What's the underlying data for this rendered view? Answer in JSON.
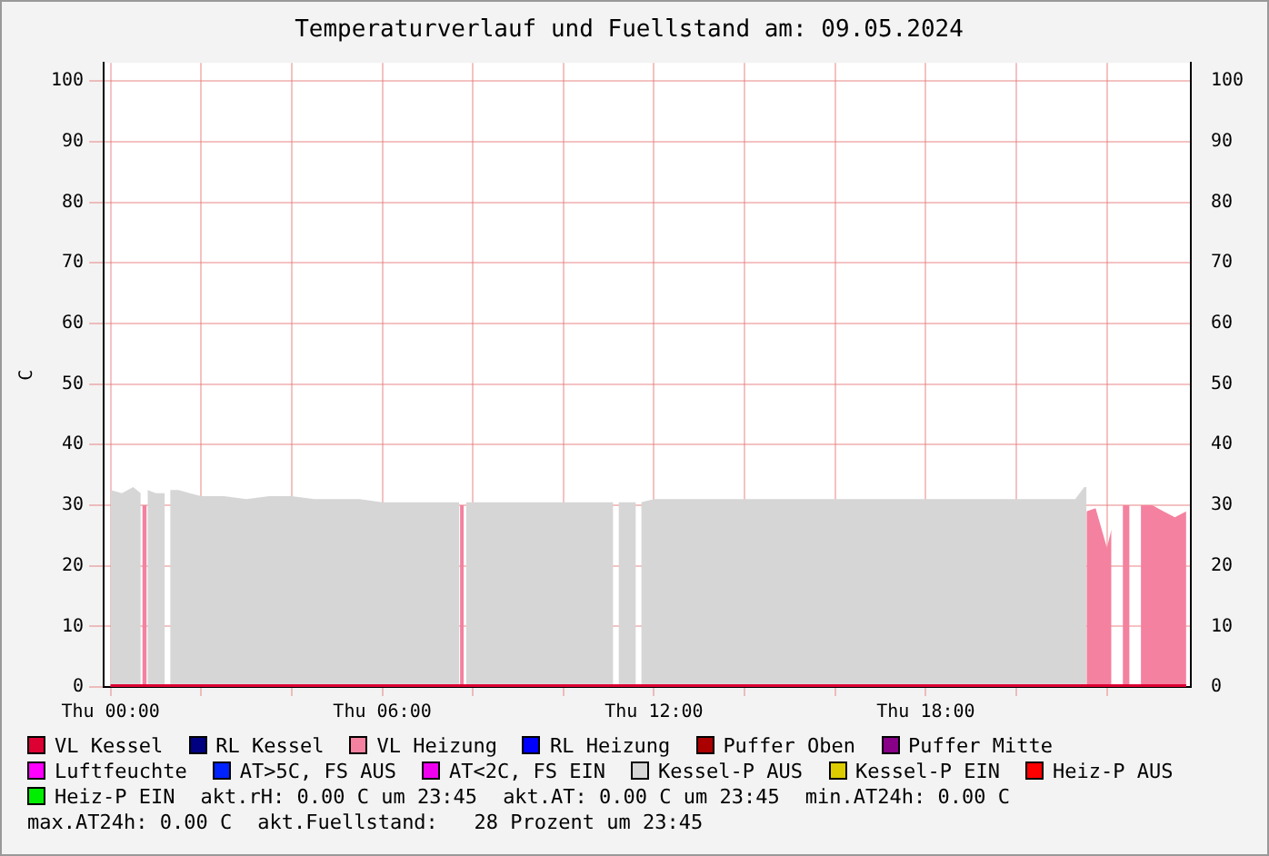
{
  "chart_data": {
    "type": "area",
    "title": "Temperaturverlauf und Fuellstand am: 09.05.2024",
    "ylabel": "C",
    "xlim": [
      "2024-05-08T23:51",
      "2024-05-09T23:51"
    ],
    "xticks": [
      {
        "value": "2024-05-09T00:00",
        "label": "Thu 00:00"
      },
      {
        "value": "2024-05-09T02:00",
        "label": null
      },
      {
        "value": "2024-05-09T04:00",
        "label": null
      },
      {
        "value": "2024-05-09T06:00",
        "label": "Thu 06:00"
      },
      {
        "value": "2024-05-09T08:00",
        "label": null
      },
      {
        "value": "2024-05-09T10:00",
        "label": null
      },
      {
        "value": "2024-05-09T12:00",
        "label": "Thu 12:00"
      },
      {
        "value": "2024-05-09T14:00",
        "label": null
      },
      {
        "value": "2024-05-09T16:00",
        "label": null
      },
      {
        "value": "2024-05-09T18:00",
        "label": "Thu 18:00"
      },
      {
        "value": "2024-05-09T20:00",
        "label": null
      },
      {
        "value": "2024-05-09T22:00",
        "label": null
      }
    ],
    "ylim": [
      0,
      103
    ],
    "yticks": [
      0,
      10,
      20,
      30,
      40,
      50,
      60,
      70,
      80,
      90,
      100
    ],
    "y2lim": [
      0,
      103
    ],
    "y2ticks": [
      0,
      10,
      20,
      30,
      40,
      50,
      60,
      70,
      80,
      90,
      100
    ],
    "grid": true,
    "legend": "bottom",
    "series": [
      {
        "name": "VL Kessel",
        "color": "#dd0033",
        "type": "line",
        "x": [
          "2024-05-09T00:00",
          "2024-05-09T23:45"
        ],
        "values": [
          0,
          0
        ]
      },
      {
        "name": "RL Kessel",
        "color": "#000080"
      },
      {
        "name": "VL Heizung",
        "color": "#f4819f",
        "x": [
          "2024-05-09T00:42",
          "2024-05-09T00:48",
          "2024-05-09T00:51",
          "2024-05-09T07:43",
          "2024-05-09T07:48",
          "2024-05-09T07:51",
          "2024-05-09T21:33",
          "2024-05-09T21:45",
          "2024-05-09T22:00",
          "2024-05-09T22:06",
          "2024-05-09T22:09",
          "2024-05-09T22:21",
          "2024-05-09T22:30",
          "2024-05-09T22:36",
          "2024-05-09T22:45",
          "2024-05-09T23:00",
          "2024-05-09T23:15",
          "2024-05-09T23:30",
          "2024-05-09T23:45"
        ],
        "values": [
          30,
          30,
          null,
          30,
          30,
          null,
          29,
          29.5,
          23,
          26,
          null,
          30,
          30,
          null,
          30,
          30,
          29,
          28,
          29
        ]
      },
      {
        "name": "RL Heizung",
        "color": "#0000ff"
      },
      {
        "name": "Puffer Oben",
        "color": "#aa0000"
      },
      {
        "name": "Puffer Mitte",
        "color": "#880088"
      },
      {
        "name": "Luftfeuchte",
        "color": "#ff00ff"
      },
      {
        "name": "AT>5C, FS AUS",
        "color": "#0022ff"
      },
      {
        "name": "AT<2C, FS EIN",
        "color": "#ee00ee"
      },
      {
        "name": "Kessel-P AUS",
        "color": "#d6d6d6",
        "x": [
          "2024-05-09T00:00",
          "2024-05-09T00:15",
          "2024-05-09T00:30",
          "2024-05-09T00:40",
          "2024-05-09T00:42",
          "2024-05-09T00:49",
          "2024-05-09T01:00",
          "2024-05-09T01:12",
          "2024-05-09T01:15",
          "2024-05-09T01:19",
          "2024-05-09T01:30",
          "2024-05-09T01:45",
          "2024-05-09T02:00",
          "2024-05-09T02:30",
          "2024-05-09T03:00",
          "2024-05-09T03:30",
          "2024-05-09T04:00",
          "2024-05-09T04:30",
          "2024-05-09T05:00",
          "2024-05-09T05:30",
          "2024-05-09T06:00",
          "2024-05-09T06:30",
          "2024-05-09T07:00",
          "2024-05-09T07:30",
          "2024-05-09T07:42",
          "2024-05-09T07:45",
          "2024-05-09T07:51",
          "2024-05-09T08:00",
          "2024-05-09T09:00",
          "2024-05-09T10:00",
          "2024-05-09T11:00",
          "2024-05-09T11:06",
          "2024-05-09T11:09",
          "2024-05-09T11:13",
          "2024-05-09T11:36",
          "2024-05-09T11:39",
          "2024-05-09T11:43",
          "2024-05-09T12:00",
          "2024-05-09T13:00",
          "2024-05-09T14:00",
          "2024-05-09T15:00",
          "2024-05-09T16:00",
          "2024-05-09T17:00",
          "2024-05-09T18:00",
          "2024-05-09T19:00",
          "2024-05-09T20:00",
          "2024-05-09T21:00",
          "2024-05-09T21:18",
          "2024-05-09T21:30",
          "2024-05-09T21:33"
        ],
        "values": [
          32.5,
          32,
          33,
          32,
          null,
          32.5,
          32,
          32,
          null,
          32.5,
          32.5,
          32,
          31.5,
          31.5,
          31,
          31.5,
          31.5,
          31,
          31,
          31,
          30.5,
          30.5,
          30.5,
          30.5,
          30.5,
          null,
          30.5,
          30.5,
          30.5,
          30.5,
          30.5,
          30.5,
          null,
          30.5,
          30.5,
          null,
          30.5,
          31,
          31,
          31,
          31,
          31,
          31,
          31,
          31,
          31,
          31,
          31,
          33,
          33
        ]
      },
      {
        "name": "Kessel-P EIN",
        "color": "#ddcc00"
      },
      {
        "name": "Heiz-P AUS",
        "color": "#ff0000"
      },
      {
        "name": "Heiz-P EIN",
        "color": "#00ee00"
      }
    ],
    "annotations": [
      "akt.rH: 0.00 C um 23:45",
      "akt.AT: 0.00 C um 23:45",
      "min.AT24h: 0.00 C",
      "max.AT24h: 0.00 C",
      "akt.Fuellstand:   28 Prozent um 23:45"
    ]
  }
}
